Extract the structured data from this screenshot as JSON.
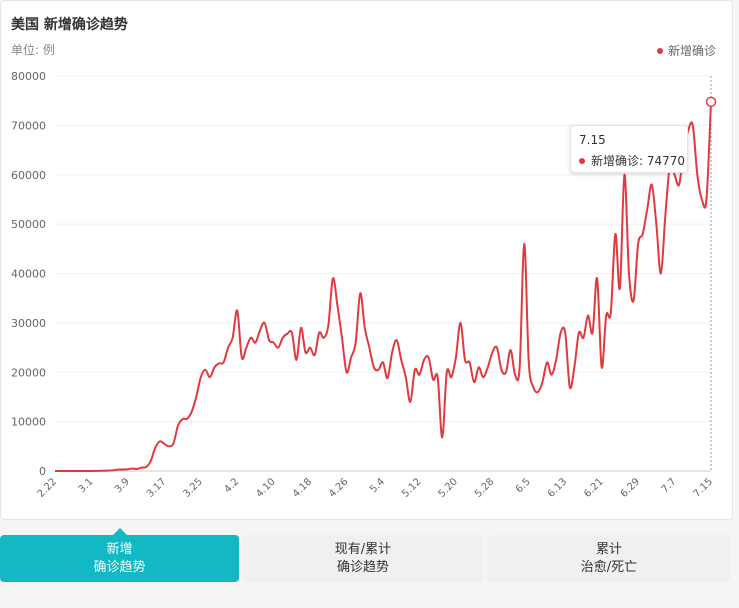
{
  "title": "美国 新增确诊趋势",
  "unit_label": "单位: 例",
  "legend": {
    "label": "新增确诊",
    "color": "#e03a3e"
  },
  "tooltip": {
    "date": "7.15",
    "label": "新增确诊",
    "value_text": "74770"
  },
  "tabs": [
    {
      "line1": "新增",
      "line2": "确诊趋势",
      "active": true
    },
    {
      "line1": "现有/累计",
      "line2": "确诊趋势",
      "active": false
    },
    {
      "line1": "累计",
      "line2": "治愈/死亡",
      "active": false
    }
  ],
  "colors": {
    "accent": "#12b8c4",
    "series": "#e03a3e"
  },
  "chart_data": {
    "type": "line",
    "ylim": [
      0,
      80000
    ],
    "yticks": [
      0,
      10000,
      20000,
      30000,
      40000,
      50000,
      60000,
      70000,
      80000
    ],
    "xticks": [
      "2.22",
      "3.1",
      "3.9",
      "3.17",
      "3.25",
      "4.2",
      "4.10",
      "4.18",
      "4.26",
      "5.4",
      "5.12",
      "5.20",
      "5.28",
      "6.5",
      "6.13",
      "6.21",
      "6.29",
      "7.7",
      "7.15"
    ],
    "xlim": [
      "2.22",
      "7.15"
    ],
    "highlight": "7.15",
    "grid": true,
    "legend_position": "top-right",
    "series": [
      {
        "name": "新增确诊",
        "x": [
          "2.22",
          "2.23",
          "2.24",
          "2.25",
          "2.26",
          "2.27",
          "2.28",
          "2.29",
          "3.1",
          "3.2",
          "3.3",
          "3.4",
          "3.5",
          "3.6",
          "3.7",
          "3.8",
          "3.9",
          "3.10",
          "3.11",
          "3.12",
          "3.13",
          "3.14",
          "3.15",
          "3.16",
          "3.17",
          "3.18",
          "3.19",
          "3.20",
          "3.21",
          "3.22",
          "3.23",
          "3.24",
          "3.25",
          "3.26",
          "3.27",
          "3.28",
          "3.29",
          "3.30",
          "3.31",
          "4.1",
          "4.2",
          "4.3",
          "4.4",
          "4.5",
          "4.6",
          "4.7",
          "4.8",
          "4.9",
          "4.10",
          "4.11",
          "4.12",
          "4.13",
          "4.14",
          "4.15",
          "4.16",
          "4.17",
          "4.18",
          "4.19",
          "4.20",
          "4.21",
          "4.22",
          "4.23",
          "4.24",
          "4.25",
          "4.26",
          "4.27",
          "4.28",
          "4.29",
          "4.30",
          "5.1",
          "5.2",
          "5.3",
          "5.4",
          "5.5",
          "5.6",
          "5.7",
          "5.8",
          "5.9",
          "5.10",
          "5.11",
          "5.12",
          "5.13",
          "5.14",
          "5.15",
          "5.16",
          "5.17",
          "5.18",
          "5.19",
          "5.20",
          "5.21",
          "5.22",
          "5.23",
          "5.24",
          "5.25",
          "5.26",
          "5.27",
          "5.28",
          "5.29",
          "5.30",
          "5.31",
          "6.1",
          "6.2",
          "6.3",
          "6.4",
          "6.5",
          "6.6",
          "6.7",
          "6.8",
          "6.9",
          "6.10",
          "6.11",
          "6.12",
          "6.13",
          "6.14",
          "6.15",
          "6.16",
          "6.17",
          "6.18",
          "6.19",
          "6.20",
          "6.21",
          "6.22",
          "6.23",
          "6.24",
          "6.25",
          "6.26",
          "6.27",
          "6.28",
          "6.29",
          "6.30",
          "7.1",
          "7.2",
          "7.3",
          "7.4",
          "7.5",
          "7.6",
          "7.7",
          "7.8",
          "7.9",
          "7.10",
          "7.11",
          "7.12",
          "7.13",
          "7.14",
          "7.15"
        ],
        "values": [
          0,
          0,
          0,
          0,
          0,
          0,
          0,
          0,
          10,
          20,
          50,
          50,
          100,
          150,
          300,
          300,
          350,
          500,
          400,
          700,
          800,
          2000,
          4700,
          6000,
          5500,
          5000,
          5600,
          9200,
          10500,
          10600,
          12000,
          15000,
          19000,
          20500,
          19000,
          21000,
          21800,
          22000,
          25000,
          27000,
          32500,
          23000,
          25000,
          27000,
          26000,
          28500,
          30000,
          26500,
          26000,
          25000,
          27000,
          27800,
          28000,
          22500,
          29000,
          24000,
          25000,
          23500,
          28000,
          27000,
          29500,
          39000,
          33500,
          27000,
          20000,
          23000,
          26000,
          36000,
          29000,
          25000,
          21000,
          20500,
          22000,
          18800,
          24000,
          26500,
          22500,
          19000,
          14000,
          20500,
          19500,
          22500,
          23000,
          18500,
          19000,
          6800,
          20000,
          19000,
          23000,
          30000,
          22500,
          22000,
          18000,
          21000,
          19000,
          21000,
          24000,
          25000,
          20500,
          20000,
          24500,
          19500,
          21000,
          46000,
          22000,
          17000,
          16000,
          18000,
          22000,
          19500,
          22500,
          28000,
          28000,
          17000,
          21000,
          28000,
          27000,
          31500,
          28000,
          39000,
          21000,
          31500,
          32000,
          48000,
          37000,
          60000,
          40000,
          34500,
          46000,
          48000,
          53000,
          58000,
          50000,
          40000,
          52000,
          62000,
          60000,
          58000,
          65000,
          69000,
          70000,
          60000,
          55000,
          55000,
          74770
        ]
      }
    ]
  }
}
